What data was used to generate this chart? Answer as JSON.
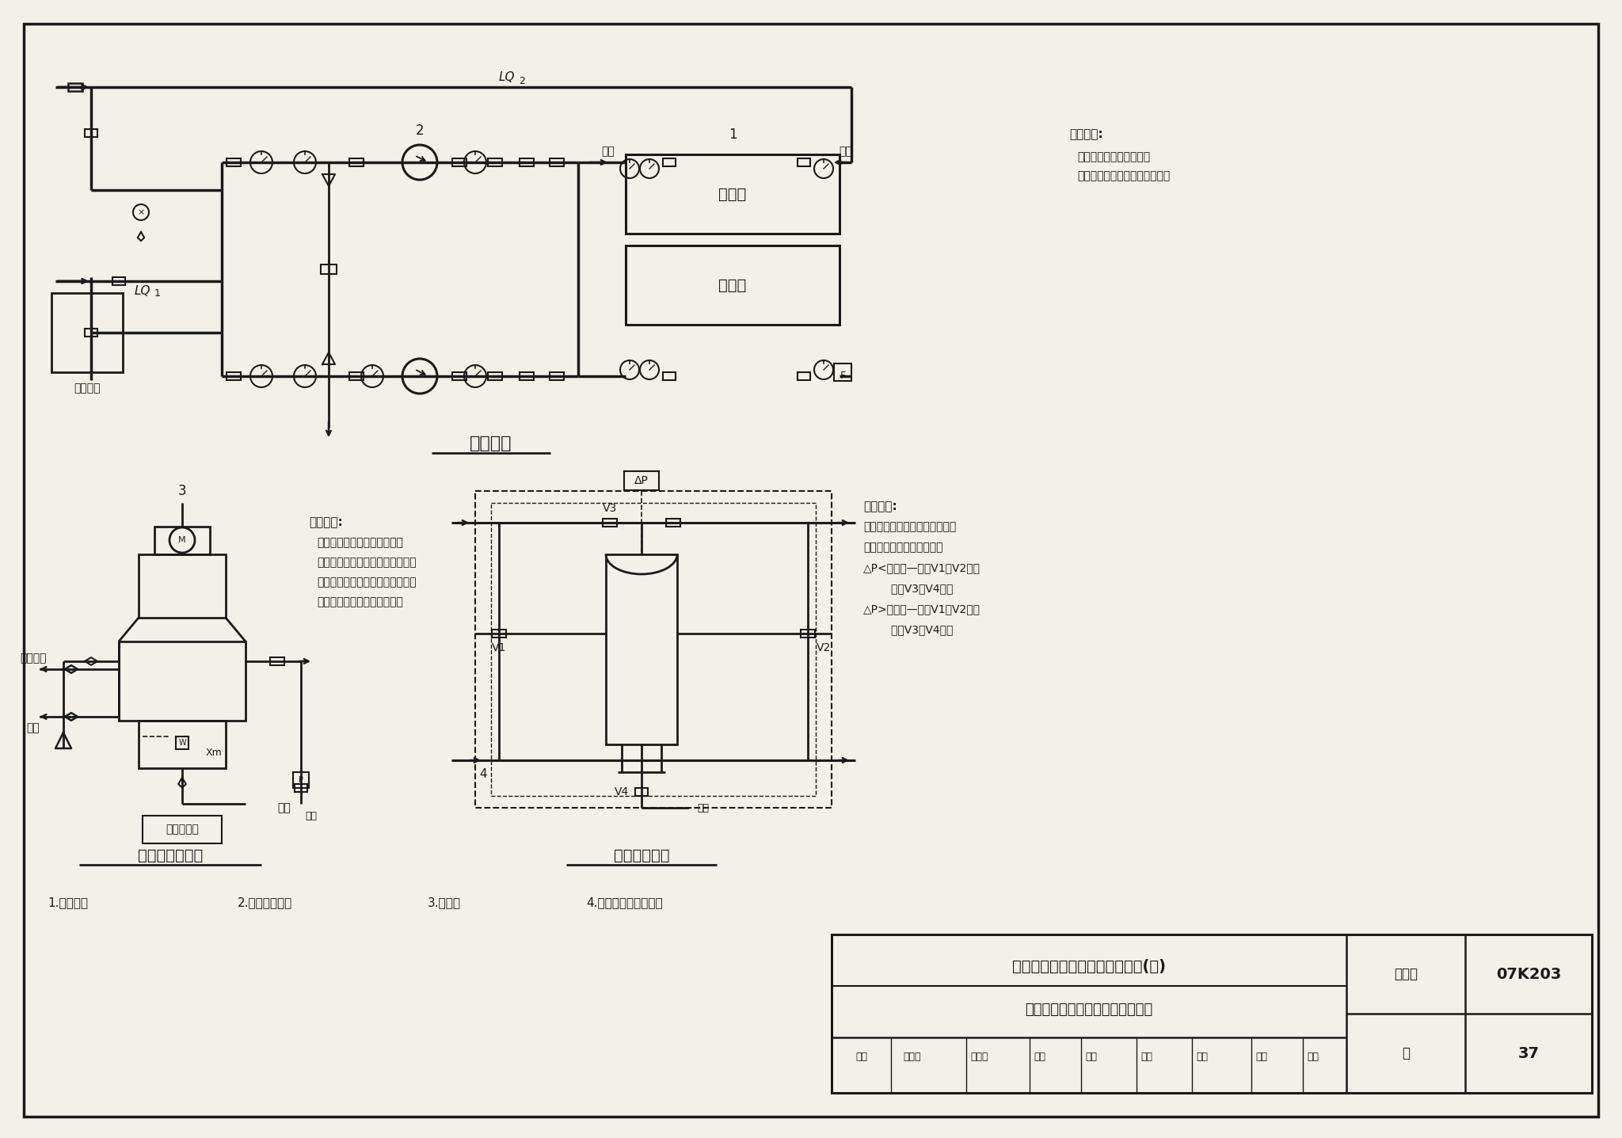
{
  "bg_color": "#f2f0e8",
  "line_color": "#1a1a1a",
  "section1_title": "旁通控制",
  "section2_title": "冷却塔排污控制",
  "section3_title": "自动过滤控制",
  "legend": [
    "1.冷水机组",
    "2.冷却水循环泵",
    "3.冷却塔",
    "4.水处理自动过滤装置"
  ],
  "note1_title": "运行策略:",
  "note1_lines": [
    "根据冷却塔出水温度控制",
    "冷却塔旁通管电动调节阀开度。"
  ],
  "note2_title": "运行策略:",
  "note2_lines": [
    "根据设于冷却塔集水盘的水质",
    "监测传感器，通过测量电导率及所",
    "设定的浓缩倍率值，自动控制冷却",
    "塔排污电动阀的开启和关闭。"
  ],
  "note3_title": "运行策略:",
  "note3_lines": [
    "根据设于进出水管的压差传感器",
    "控制电动阀的开启和关闭：",
    "△P<设定值—阀门V1、V2开启",
    "        阀门V3、V4关闭",
    "△P>设定值—阀门V1、V2关闭",
    "        阀门V3、V4开启"
  ],
  "title_row1": "空调冷却水系统通用自控原理图(三)",
  "title_row2": "旁通、冷却塔排污、自动过滤控制",
  "atlas_label": "图集号",
  "atlas_number": "07K203",
  "page_label": "页",
  "page_number": "37",
  "review_row": [
    "审核",
    "伍小亭",
    "何七李",
    "校对",
    "王现",
    "矿砚",
    "设计",
    "赵斌",
    "赵斌"
  ]
}
